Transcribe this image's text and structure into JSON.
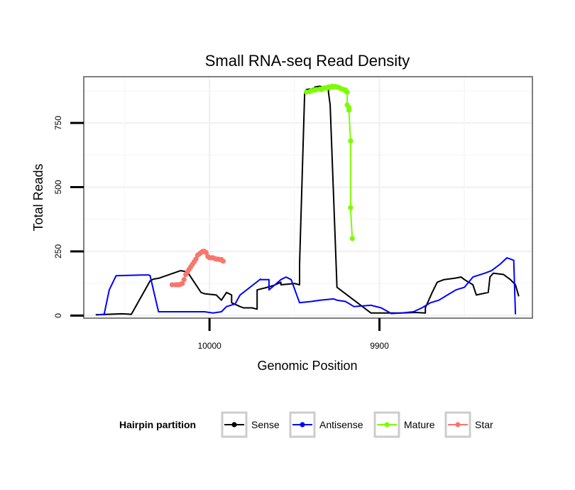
{
  "chart_data": {
    "type": "line",
    "title": "Small RNA-seq Read Density",
    "xlabel": "Genomic Position",
    "ylabel": "Total Reads",
    "x_reversed": true,
    "xlim": [
      10074,
      9810
    ],
    "ylim": [
      -10,
      930
    ],
    "x_ticks": [
      10000,
      9900
    ],
    "x_tick_labels": [
      "10000",
      "9900"
    ],
    "y_ticks": [
      0,
      250,
      500,
      750
    ],
    "y_tick_labels": [
      "0",
      "250",
      "500",
      "750"
    ],
    "legend": {
      "title": "Hairpin partition",
      "position": "bottom",
      "entries": [
        {
          "name": "Sense",
          "color": "#000000"
        },
        {
          "name": "Antisense",
          "color": "#0000ff"
        },
        {
          "name": "Mature",
          "color": "#7cfc00"
        },
        {
          "name": "Star",
          "color": "#f8766d"
        }
      ]
    },
    "series": [
      {
        "name": "Sense",
        "color": "#000000",
        "x": [
          10067,
          10060,
          10052,
          10048,
          10046,
          10035,
          10033,
          10030,
          10030,
          10017,
          10013,
          10005,
          10003,
          9996,
          9993,
          9990,
          9987,
          9987,
          9982,
          9980,
          9975,
          9972,
          9972,
          9966,
          9962,
          9958,
          9958,
          9950,
          9947,
          9947,
          9944,
          9943,
          9938,
          9938,
          9935,
          9934,
          9930,
          9930,
          9929,
          9925,
          9905,
          9905,
          9898,
          9893,
          9887,
          9879,
          9873,
          9873,
          9869,
          9866,
          9862,
          9856,
          9852,
          9850,
          9845,
          9843,
          9836,
          9835,
          9833,
          9827,
          9823,
          9820,
          9818
        ],
        "y": [
          3,
          5,
          7,
          6,
          5,
          135,
          142,
          145,
          145,
          175,
          170,
          90,
          85,
          80,
          60,
          90,
          80,
          50,
          35,
          30,
          30,
          25,
          100,
          110,
          118,
          130,
          120,
          125,
          120,
          200,
          870,
          880,
          885,
          890,
          893,
          890,
          880,
          870,
          820,
          110,
          10,
          10,
          10,
          10,
          10,
          12,
          10,
          30,
          90,
          130,
          140,
          145,
          150,
          140,
          120,
          80,
          90,
          150,
          165,
          160,
          140,
          120,
          75
        ]
      },
      {
        "name": "Antisense",
        "color": "#0000ff",
        "x": [
          10066,
          10062,
          10059,
          10055,
          10040,
          10036,
          10035,
          10030,
          10020,
          10010,
          10003,
          9998,
          9993,
          9990,
          9985,
          9982,
          9970,
          9970,
          9965,
          9965,
          9958,
          9955,
          9952,
          9947,
          9940,
          9935,
          9927,
          9925,
          9920,
          9915,
          9905,
          9899,
          9893,
          9887,
          9880,
          9875,
          9870,
          9865,
          9860,
          9855,
          9850,
          9845,
          9838,
          9834,
          9829,
          9825,
          9821,
          9820
        ],
        "y": [
          3,
          5,
          100,
          155,
          158,
          158,
          156,
          15,
          15,
          15,
          15,
          10,
          15,
          35,
          45,
          80,
          142,
          140,
          140,
          100,
          140,
          150,
          140,
          50,
          55,
          60,
          65,
          60,
          55,
          35,
          40,
          30,
          8,
          10,
          15,
          30,
          50,
          60,
          80,
          100,
          110,
          150,
          165,
          175,
          200,
          225,
          215,
          5
        ]
      },
      {
        "name": "Mature",
        "color": "#7cfc00",
        "x": [
          9943,
          9941,
          9940,
          9938,
          9937,
          9935,
          9934,
          9933,
          9932,
          9931,
          9930,
          9929,
          9928,
          9928,
          9927,
          9926,
          9925,
          9924,
          9923,
          9922,
          9921,
          9920,
          9920,
          9919,
          9919,
          9918,
          9918,
          9917,
          9917,
          9916
        ],
        "y": [
          870,
          872,
          876,
          878,
          880,
          882,
          880,
          885,
          887,
          885,
          890,
          888,
          891,
          893,
          890,
          892,
          890,
          888,
          885,
          882,
          880,
          878,
          875,
          870,
          820,
          810,
          800,
          680,
          420,
          300
        ]
      },
      {
        "name": "Star",
        "color": "#f8766d",
        "x": [
          10022,
          10020,
          10019,
          10018,
          10017,
          10016,
          10015,
          10014,
          10013,
          10012,
          10011,
          10010,
          10009,
          10008,
          10007,
          10006,
          10005,
          10004,
          10003,
          10002,
          10001,
          10000,
          9999,
          9998,
          9997,
          9996,
          9995,
          9994,
          9993,
          9992
        ],
        "y": [
          120,
          120,
          120,
          120,
          122,
          125,
          140,
          160,
          170,
          180,
          190,
          200,
          210,
          220,
          235,
          240,
          245,
          250,
          250,
          245,
          230,
          225,
          225,
          225,
          222,
          220,
          220,
          218,
          218,
          212
        ]
      }
    ]
  }
}
